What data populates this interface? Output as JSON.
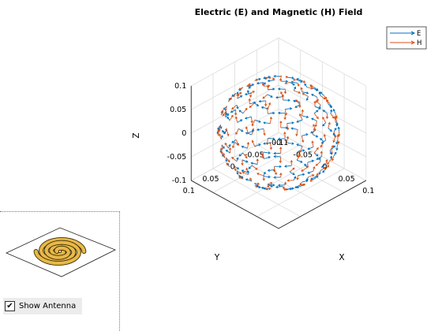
{
  "chart_data": {
    "type": "quiver3d",
    "title": "Electric (E) and Magnetic (H) Field",
    "xlabel": "X",
    "ylabel": "Y",
    "zlabel": "Z",
    "xlim": [
      -0.1,
      0.1
    ],
    "ylim": [
      -0.1,
      0.1
    ],
    "zlim": [
      -0.1,
      0.1
    ],
    "xticks": [
      "-0.1",
      "-0.05",
      "0",
      "0.05",
      "0.1"
    ],
    "yticks": [
      "-0.1",
      "-0.05",
      "0",
      "0.05",
      "0.1"
    ],
    "zticks": [
      "-0.1",
      "-0.05",
      "0",
      "0.05",
      "0.1"
    ],
    "sphere_radius": 0.1,
    "grid": true,
    "legend_position": "top-right",
    "series": [
      {
        "name": "E",
        "color": "#0072BD",
        "field": "tangential (azimuthal) vectors on sphere"
      },
      {
        "name": "H",
        "color": "#D95319",
        "field": "tangential (polar) vectors on sphere"
      }
    ]
  },
  "controls": {
    "show_antenna_label": "Show Antenna",
    "show_antenna_checked": true,
    "check_mark": "✔"
  },
  "colors": {
    "antenna_fill": "#E7B84A",
    "antenna_edge": "#3a2a00"
  }
}
